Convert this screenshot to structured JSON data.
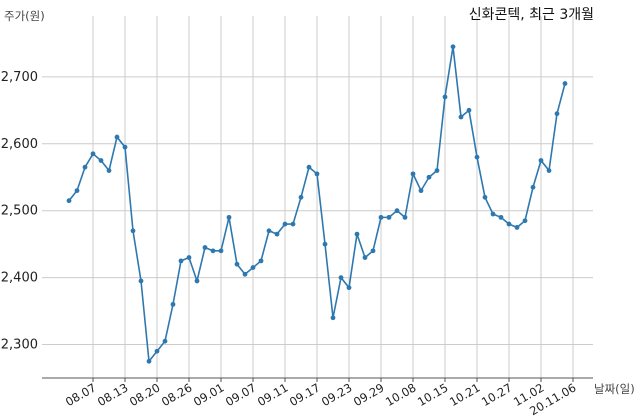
{
  "chart_data": {
    "type": "line",
    "title": "신화콘텍, 최근 3개월",
    "ylabel": "주가(원)",
    "xlabel": "날짜(일)",
    "ylim": [
      2250,
      2770
    ],
    "yticks": [
      2300,
      2400,
      2500,
      2600,
      2700
    ],
    "ytick_labels": [
      "2,300",
      "2,400",
      "2,500",
      "2,600",
      "2,700"
    ],
    "x_tick_labels": [
      "08.07",
      "08.13",
      "08.20",
      "08.26",
      "09.01",
      "09.07",
      "09.11",
      "09.17",
      "09.23",
      "09.29",
      "10.08",
      "10.15",
      "10.21",
      "10.27",
      "11.02",
      "20.11.06"
    ],
    "x_tick_index": [
      3,
      7,
      11,
      15,
      19,
      23,
      27,
      31,
      35,
      39,
      43,
      47,
      51,
      55,
      59,
      63
    ],
    "grid": true,
    "line_color": "#2e78b0",
    "series": [
      {
        "values": [
          2515,
          2530,
          2565,
          2585,
          2575,
          2560,
          2610,
          2595,
          2470,
          2395,
          2275,
          2290,
          2305,
          2360,
          2425,
          2430,
          2395,
          2445,
          2440,
          2440,
          2490,
          2420,
          2405,
          2415,
          2425,
          2470,
          2465,
          2480,
          2480,
          2520,
          2565,
          2555,
          2450,
          2340,
          2400,
          2385,
          2465,
          2430,
          2440,
          2490,
          2490,
          2500,
          2490,
          2555,
          2530,
          2550,
          2560,
          2670,
          2745,
          2640,
          2650,
          2580,
          2520,
          2495,
          2490,
          2480,
          2475,
          2485,
          2535,
          2575,
          2560,
          2645,
          2690
        ]
      }
    ]
  }
}
